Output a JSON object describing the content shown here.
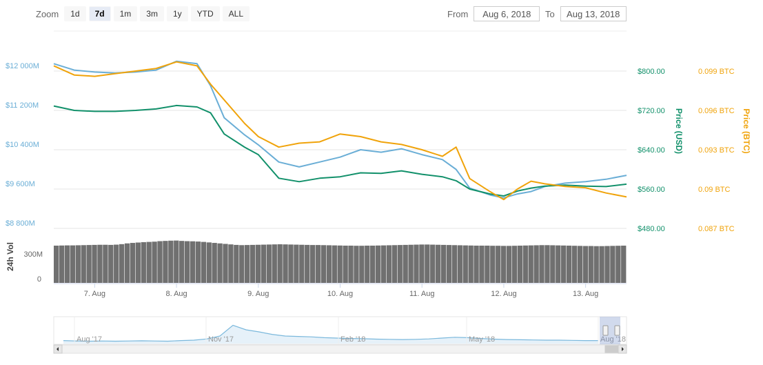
{
  "zoom": {
    "label": "Zoom",
    "buttons": [
      {
        "label": "1d",
        "active": false
      },
      {
        "label": "7d",
        "active": true
      },
      {
        "label": "1m",
        "active": false
      },
      {
        "label": "3m",
        "active": false
      },
      {
        "label": "1y",
        "active": false
      },
      {
        "label": "YTD",
        "active": false
      },
      {
        "label": "ALL",
        "active": false
      }
    ]
  },
  "range": {
    "from_label": "From",
    "from_value": "Aug 6, 2018",
    "to_label": "To",
    "to_value": "Aug 13, 2018"
  },
  "colors": {
    "market_cap": "#6aaed6",
    "price_usd": "#11906a",
    "price_btc": "#f0a30a",
    "volume": "#707070",
    "navigator": "#7ab8dc",
    "grid": "#e6e6e6"
  },
  "chart_data": {
    "type": "line",
    "title": "",
    "x_start": "2018-08-06T12:00",
    "x_end": "2018-08-13T12:00",
    "xlabel": "",
    "x_ticks": [
      "7. Aug",
      "8. Aug",
      "9. Aug",
      "10. Aug",
      "11. Aug",
      "12. Aug",
      "13. Aug"
    ],
    "axes": {
      "market_cap": {
        "label": "",
        "range": [
          8800,
          12000
        ],
        "ticks": [
          "$8 800M",
          "$9 600M",
          "$10 400M",
          "$11 200M",
          "$12 000M"
        ]
      },
      "price_usd": {
        "label": "Price (USD)",
        "range": [
          480,
          800
        ],
        "ticks": [
          "$480.00",
          "$560.00",
          "$640.00",
          "$720.00",
          "$800.00"
        ]
      },
      "price_btc": {
        "label": "Price (BTC)",
        "range": [
          0.087,
          0.099
        ],
        "ticks": [
          "0.087 BTC",
          "0.09 BTC",
          "0.093 BTC",
          "0.096 BTC",
          "0.099 BTC"
        ]
      },
      "volume": {
        "label": "24h Vol",
        "ticks": [
          "0",
          "300M"
        ]
      }
    },
    "series": [
      {
        "key": "market_cap",
        "values": [
          [
            "2018-08-06T12:00",
            12150
          ],
          [
            "2018-08-06T18:00",
            12020
          ],
          [
            "2018-08-07T00:00",
            11980
          ],
          [
            "2018-08-07T06:00",
            11960
          ],
          [
            "2018-08-07T12:00",
            11980
          ],
          [
            "2018-08-07T18:00",
            12020
          ],
          [
            "2018-08-08T00:00",
            12200
          ],
          [
            "2018-08-08T06:00",
            12150
          ],
          [
            "2018-08-08T10:00",
            11700
          ],
          [
            "2018-08-08T14:00",
            11050
          ],
          [
            "2018-08-08T20:00",
            10700
          ],
          [
            "2018-08-09T00:00",
            10500
          ],
          [
            "2018-08-09T06:00",
            10150
          ],
          [
            "2018-08-09T12:00",
            10050
          ],
          [
            "2018-08-09T18:00",
            10150
          ],
          [
            "2018-08-10T00:00",
            10250
          ],
          [
            "2018-08-10T06:00",
            10400
          ],
          [
            "2018-08-10T12:00",
            10350
          ],
          [
            "2018-08-10T18:00",
            10420
          ],
          [
            "2018-08-11T00:00",
            10300
          ],
          [
            "2018-08-11T06:00",
            10200
          ],
          [
            "2018-08-11T10:00",
            10000
          ],
          [
            "2018-08-11T14:00",
            9620
          ],
          [
            "2018-08-11T20:00",
            9480
          ],
          [
            "2018-08-12T00:00",
            9420
          ],
          [
            "2018-08-12T04:00",
            9500
          ],
          [
            "2018-08-12T08:00",
            9550
          ],
          [
            "2018-08-12T12:00",
            9650
          ],
          [
            "2018-08-12T18:00",
            9720
          ],
          [
            "2018-08-13T00:00",
            9750
          ],
          [
            "2018-08-13T06:00",
            9800
          ],
          [
            "2018-08-13T12:00",
            9880
          ]
        ]
      },
      {
        "key": "price_usd",
        "name": "Price (USD)",
        "values": [
          [
            "2018-08-06T12:00",
            729
          ],
          [
            "2018-08-06T18:00",
            720
          ],
          [
            "2018-08-07T00:00",
            718
          ],
          [
            "2018-08-07T06:00",
            718
          ],
          [
            "2018-08-07T12:00",
            720
          ],
          [
            "2018-08-07T18:00",
            723
          ],
          [
            "2018-08-08T00:00",
            730
          ],
          [
            "2018-08-08T06:00",
            727
          ],
          [
            "2018-08-08T10:00",
            715
          ],
          [
            "2018-08-08T14:00",
            672
          ],
          [
            "2018-08-08T20:00",
            645
          ],
          [
            "2018-08-09T00:00",
            630
          ],
          [
            "2018-08-09T06:00",
            582
          ],
          [
            "2018-08-09T12:00",
            575
          ],
          [
            "2018-08-09T18:00",
            582
          ],
          [
            "2018-08-10T00:00",
            585
          ],
          [
            "2018-08-10T06:00",
            593
          ],
          [
            "2018-08-10T12:00",
            592
          ],
          [
            "2018-08-10T18:00",
            597
          ],
          [
            "2018-08-11T00:00",
            590
          ],
          [
            "2018-08-11T06:00",
            585
          ],
          [
            "2018-08-11T10:00",
            577
          ],
          [
            "2018-08-11T14:00",
            560
          ],
          [
            "2018-08-11T20:00",
            550
          ],
          [
            "2018-08-12T00:00",
            546
          ],
          [
            "2018-08-12T04:00",
            556
          ],
          [
            "2018-08-12T08:00",
            562
          ],
          [
            "2018-08-12T12:00",
            566
          ],
          [
            "2018-08-12T18:00",
            568
          ],
          [
            "2018-08-13T00:00",
            566
          ],
          [
            "2018-08-13T06:00",
            565
          ],
          [
            "2018-08-13T12:00",
            570
          ]
        ]
      },
      {
        "key": "price_btc",
        "name": "Price (BTC)",
        "values": [
          [
            "2018-08-06T12:00",
            0.0994
          ],
          [
            "2018-08-06T18:00",
            0.0987
          ],
          [
            "2018-08-07T00:00",
            0.0986
          ],
          [
            "2018-08-07T06:00",
            0.0988
          ],
          [
            "2018-08-07T12:00",
            0.099
          ],
          [
            "2018-08-07T18:00",
            0.0992
          ],
          [
            "2018-08-08T00:00",
            0.0997
          ],
          [
            "2018-08-08T06:00",
            0.0994
          ],
          [
            "2018-08-08T10:00",
            0.098
          ],
          [
            "2018-08-08T14:00",
            0.0968
          ],
          [
            "2018-08-08T20:00",
            0.095
          ],
          [
            "2018-08-09T00:00",
            0.094
          ],
          [
            "2018-08-09T06:00",
            0.0932
          ],
          [
            "2018-08-09T12:00",
            0.0935
          ],
          [
            "2018-08-09T18:00",
            0.0936
          ],
          [
            "2018-08-10T00:00",
            0.0942
          ],
          [
            "2018-08-10T06:00",
            0.094
          ],
          [
            "2018-08-10T12:00",
            0.0936
          ],
          [
            "2018-08-10T18:00",
            0.0934
          ],
          [
            "2018-08-11T00:00",
            0.093
          ],
          [
            "2018-08-11T06:00",
            0.0925
          ],
          [
            "2018-08-11T10:00",
            0.0932
          ],
          [
            "2018-08-11T14:00",
            0.0908
          ],
          [
            "2018-08-11T20:00",
            0.0898
          ],
          [
            "2018-08-12T00:00",
            0.0892
          ],
          [
            "2018-08-12T04:00",
            0.09
          ],
          [
            "2018-08-12T08:00",
            0.0906
          ],
          [
            "2018-08-12T12:00",
            0.0904
          ],
          [
            "2018-08-12T18:00",
            0.0902
          ],
          [
            "2018-08-13T00:00",
            0.0901
          ],
          [
            "2018-08-13T06:00",
            0.0897
          ],
          [
            "2018-08-13T12:00",
            0.0894
          ]
        ]
      }
    ],
    "volume_values": [
      300,
      301,
      302,
      302,
      303,
      304,
      305,
      306,
      307,
      307,
      306,
      308,
      312,
      318,
      322,
      325,
      328,
      330,
      332,
      336,
      338,
      340,
      341,
      338,
      336,
      335,
      333,
      330,
      326,
      322,
      318,
      314,
      310,
      306,
      304,
      305,
      306,
      307,
      308,
      309,
      310,
      311,
      310,
      309,
      308,
      307,
      306,
      305,
      305,
      304,
      303,
      302,
      301,
      300,
      300,
      299,
      299,
      300,
      300,
      301,
      302,
      303,
      304,
      305,
      306,
      307,
      308,
      309,
      309,
      308,
      307,
      306,
      305,
      304,
      303,
      302,
      301,
      300,
      300,
      300,
      299,
      299,
      298,
      298,
      299,
      300,
      301,
      302,
      303,
      304,
      304,
      303,
      302,
      301,
      300,
      299,
      298,
      297,
      297,
      296,
      296,
      297,
      298,
      299,
      300
    ],
    "navigator": {
      "x_ticks": [
        "Aug '17",
        "Nov '17",
        "Feb '18",
        "May '18",
        "Aug '18"
      ]
    }
  }
}
